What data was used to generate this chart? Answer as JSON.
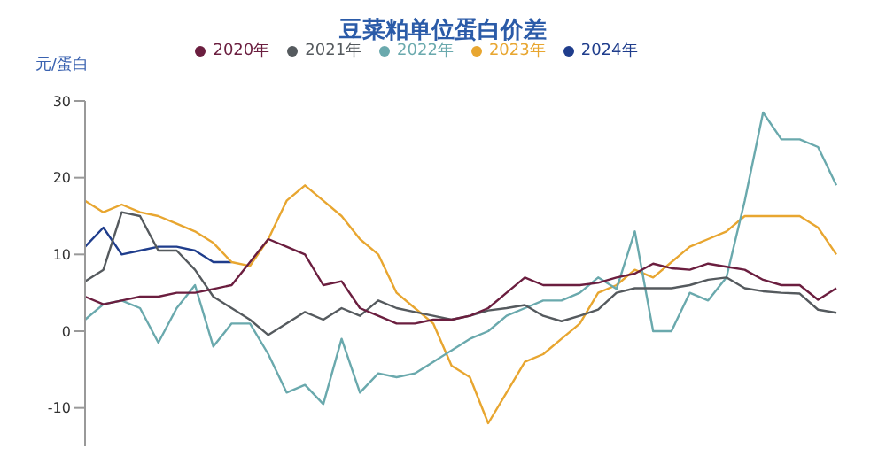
{
  "chart_data": {
    "type": "line",
    "title": "豆菜粕单位蛋白价差",
    "ylabel": "元/蛋白",
    "categories": [
      null,
      null,
      null,
      null,
      null,
      null,
      null,
      null,
      null,
      null,
      null,
      null,
      null,
      null,
      null,
      null,
      null,
      null,
      null,
      null,
      null,
      null,
      null,
      null,
      null,
      null,
      null,
      null,
      null,
      null,
      null,
      null,
      null,
      null,
      null,
      null,
      null,
      null,
      null,
      null,
      null,
      null
    ],
    "series": [
      {
        "name": "2024年",
        "color": "#1f3d8c",
        "values": [
          11,
          13.5,
          10,
          10.5,
          11,
          11,
          10.5,
          9,
          9,
          null,
          null,
          null,
          null,
          null,
          null,
          null,
          null,
          null,
          null,
          null,
          null,
          null,
          null,
          null,
          null,
          null,
          null,
          null,
          null,
          null,
          null,
          null,
          null,
          null,
          null,
          null,
          null,
          null,
          null,
          null,
          null,
          null
        ]
      },
      {
        "name": "2023年",
        "color": "#e8a630",
        "values": [
          17,
          15.5,
          16.5,
          15.5,
          15,
          14,
          13,
          11.5,
          9,
          8.5,
          12,
          17,
          19,
          17,
          15,
          12,
          10,
          5,
          3,
          1,
          -4.5,
          -6,
          -12,
          -8,
          -4,
          -3,
          -1,
          1,
          5,
          6,
          8,
          7,
          9,
          11,
          12,
          13,
          15,
          15,
          15,
          15,
          13.5,
          10
        ]
      },
      {
        "name": "2022年",
        "color": "#6aa9ad",
        "values": [
          1.5,
          3.5,
          4,
          3,
          -1.5,
          3,
          6,
          -2,
          1,
          1,
          -3,
          -8,
          -7,
          -9.5,
          -1,
          -8,
          -5.5,
          -6,
          -5.5,
          -4,
          -2.5,
          -1,
          0,
          2,
          3,
          4,
          4,
          5,
          7,
          5.5,
          13,
          0,
          0,
          5,
          4,
          7,
          17,
          28.5,
          25,
          25,
          24,
          19
        ]
      },
      {
        "name": "2021年",
        "color": "#555a5e",
        "values": [
          6.5,
          8,
          15.5,
          15,
          10.5,
          10.5,
          8,
          4.5,
          3,
          1.5,
          -0.5,
          1,
          2.5,
          1.5,
          3,
          2,
          4,
          3,
          2.5,
          2,
          1.5,
          2,
          2.7,
          3,
          3.4,
          2,
          1.3,
          2,
          2.8,
          5,
          5.6,
          5.6,
          5.6,
          6,
          6.7,
          7,
          5.6,
          5.2,
          5,
          4.9,
          2.8,
          2.4
        ]
      },
      {
        "name": "2020年",
        "color": "#6b1e3f",
        "values": [
          4.5,
          3.5,
          4,
          4.5,
          4.5,
          5,
          5,
          5.5,
          6,
          9,
          12,
          11,
          10,
          6,
          6.5,
          3,
          2,
          1,
          1,
          1.5,
          1.5,
          2,
          3,
          5,
          7,
          6,
          6,
          6,
          6.3,
          7,
          7.5,
          8.8,
          8.2,
          8,
          8.8,
          8.4,
          8,
          6.7,
          6,
          6,
          4.1,
          5.6
        ]
      }
    ],
    "ylim": [
      -15,
      30
    ],
    "yticks": [
      -10,
      0,
      10,
      20,
      30
    ],
    "grid": false,
    "legend": "top",
    "marker": "none",
    "line_style": "solid",
    "tick_labels": "y"
  }
}
